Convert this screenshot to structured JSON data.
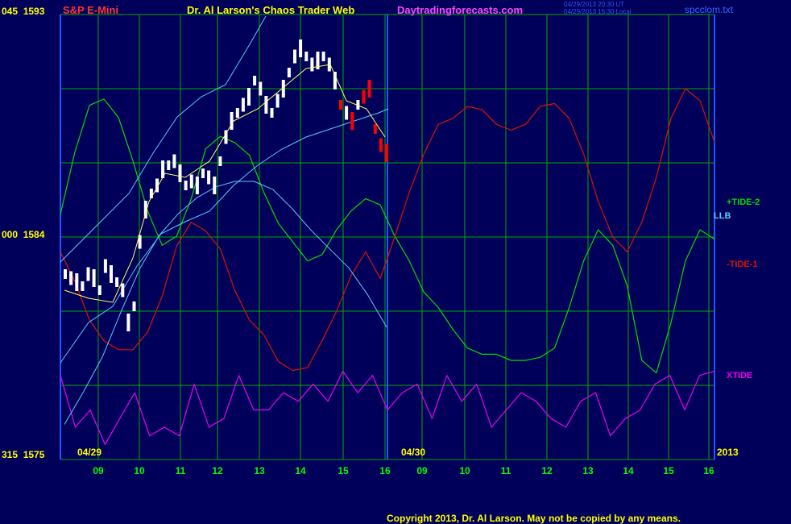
{
  "header": {
    "instrument": "S&P E-Mini",
    "title": "Dr. Al Larson's Chaos Trader Web",
    "site": "Daytradingforecasts.com",
    "timestamp_line1": "04/29/2013 20:30 UT",
    "timestamp_line2": "04/29/2013 15:30 Local",
    "filename": "spcclom.txt"
  },
  "y_axis": {
    "top_label": "045  1593",
    "mid_label": "000  1584",
    "bottom_label": "315  1575"
  },
  "date_labels": {
    "left": "04/29",
    "middle": "04/30",
    "year": "2013"
  },
  "copyright": "Copyright 2013, Dr. Al Larson. May not be copied by any means.",
  "colors": {
    "background": "#00005a",
    "grid": "#00aa00",
    "up_bar": "#ffffff",
    "down_bar": "#ff0000",
    "llb": "#55ccff",
    "tide2": "#00dd00",
    "tide1": "#dd1100",
    "xtide": "#ee00ee",
    "moving_avg": "#ffff66",
    "time_labels": "#00ff00",
    "axis_labels": "#ffff00"
  },
  "chart_data": {
    "type": "line",
    "title": "S&P E-Mini",
    "x_ticks": [
      "09",
      "10",
      "11",
      "12",
      "13",
      "14",
      "15",
      "16",
      "09",
      "10",
      "11",
      "12",
      "13",
      "14",
      "15",
      "16"
    ],
    "ylim": [
      1575,
      1593
    ],
    "y_ticks": [
      1575,
      1584,
      1593
    ],
    "price_scale_note": "price bars end at 16:00 on 04/29",
    "series": [
      {
        "name": "+TIDE-2",
        "color": "#00dd00",
        "values": [
          0.55,
          0.75,
          0.9,
          0.92,
          0.86,
          0.72,
          0.56,
          0.45,
          0.48,
          0.6,
          0.76,
          0.8,
          0.78,
          0.74,
          0.62,
          0.52,
          0.46,
          0.4,
          0.42,
          0.5,
          0.56,
          0.6,
          0.58,
          0.48,
          0.4,
          0.3,
          0.25,
          0.18,
          0.12,
          0.1,
          0.1,
          0.08,
          0.08,
          0.09,
          0.12,
          0.25,
          0.4,
          0.5,
          0.45,
          0.32,
          0.08,
          0.04,
          0.2,
          0.4,
          0.5,
          0.47
        ]
      },
      {
        "name": "-TIDE-1",
        "color": "#dd1100",
        "values": [
          0.45,
          0.35,
          0.22,
          0.15,
          0.12,
          0.12,
          0.18,
          0.3,
          0.47,
          0.55,
          0.52,
          0.46,
          0.32,
          0.22,
          0.17,
          0.08,
          0.05,
          0.06,
          0.15,
          0.25,
          0.37,
          0.45,
          0.36,
          0.5,
          0.65,
          0.78,
          0.88,
          0.9,
          0.94,
          0.93,
          0.88,
          0.86,
          0.88,
          0.94,
          0.95,
          0.9,
          0.78,
          0.62,
          0.5,
          0.45,
          0.55,
          0.7,
          0.9,
          1.0,
          0.96,
          0.82
        ]
      },
      {
        "name": "LLB",
        "color": "#55ccff",
        "values": [
          0.1,
          0.22,
          0.35,
          0.52,
          0.68,
          0.8,
          0.88,
          0.94,
          0.98,
          1.0,
          1.0,
          0.97,
          0.9,
          0.82,
          0.75,
          0.68,
          0.58,
          0.46
        ]
      },
      {
        "name": "XTIDE",
        "color": "#ee00ee",
        "values": [
          0.9,
          0.3,
          0.5,
          0.1,
          0.4,
          0.7,
          0.2,
          0.3,
          0.2,
          0.8,
          0.3,
          0.4,
          0.9,
          0.5,
          0.5,
          0.7,
          0.6,
          0.8,
          0.6,
          0.95,
          0.7,
          0.9,
          0.5,
          0.7,
          0.8,
          0.4,
          0.9,
          0.6,
          0.8,
          0.3,
          0.5,
          0.7,
          0.6,
          0.4,
          0.3,
          0.6,
          0.7,
          0.2,
          0.4,
          0.5,
          0.8,
          0.9,
          0.5,
          0.9,
          0.95
        ]
      }
    ],
    "legend": [
      {
        "label": "+TIDE-2",
        "color": "#00dd00"
      },
      {
        "label": "LLB",
        "color": "#55ccff"
      },
      {
        "label": "-TIDE-1",
        "color": "#dd1100"
      },
      {
        "label": "XTIDE",
        "color": "#ee00ee"
      }
    ]
  }
}
